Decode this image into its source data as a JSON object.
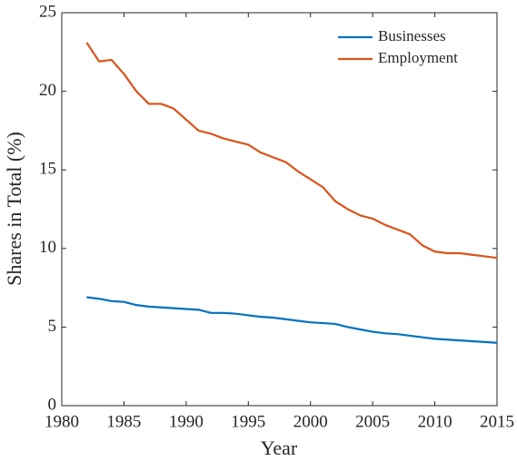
{
  "chart_data": {
    "type": "line",
    "x_label": "Year",
    "y_label": "Shares in Total (%)",
    "x": [
      1982,
      1983,
      1984,
      1985,
      1986,
      1987,
      1988,
      1989,
      1990,
      1991,
      1992,
      1993,
      1994,
      1995,
      1996,
      1997,
      1998,
      1999,
      2000,
      2001,
      2002,
      2003,
      2004,
      2005,
      2006,
      2007,
      2008,
      2009,
      2010,
      2011,
      2012,
      2013,
      2014,
      2015
    ],
    "series": [
      {
        "name": "Businesses",
        "color": "#0072BD",
        "values": [
          6.9,
          6.8,
          6.65,
          6.6,
          6.4,
          6.3,
          6.25,
          6.2,
          6.15,
          6.1,
          5.9,
          5.9,
          5.85,
          5.75,
          5.65,
          5.6,
          5.5,
          5.4,
          5.3,
          5.25,
          5.2,
          5.0,
          4.85,
          4.7,
          4.6,
          4.55,
          4.45,
          4.35,
          4.25,
          4.2,
          4.15,
          4.1,
          4.05,
          4.0
        ]
      },
      {
        "name": "Employment",
        "color": "#D95319",
        "values": [
          23.1,
          21.9,
          22.0,
          21.1,
          20.0,
          19.2,
          19.2,
          18.9,
          18.2,
          17.5,
          17.3,
          17.0,
          16.8,
          16.6,
          16.1,
          15.8,
          15.5,
          14.9,
          14.4,
          13.9,
          13.0,
          12.5,
          12.1,
          11.9,
          11.5,
          11.2,
          10.9,
          10.2,
          9.8,
          9.7,
          9.7,
          9.6,
          9.5,
          9.4
        ]
      }
    ],
    "xlim": [
      1980,
      2015
    ],
    "xticks": [
      1980,
      1985,
      1990,
      1995,
      2000,
      2005,
      2010,
      2015
    ],
    "ylim": [
      0,
      25
    ],
    "yticks": [
      0,
      5,
      10,
      15,
      20,
      25
    ],
    "legend": "upper-right"
  }
}
